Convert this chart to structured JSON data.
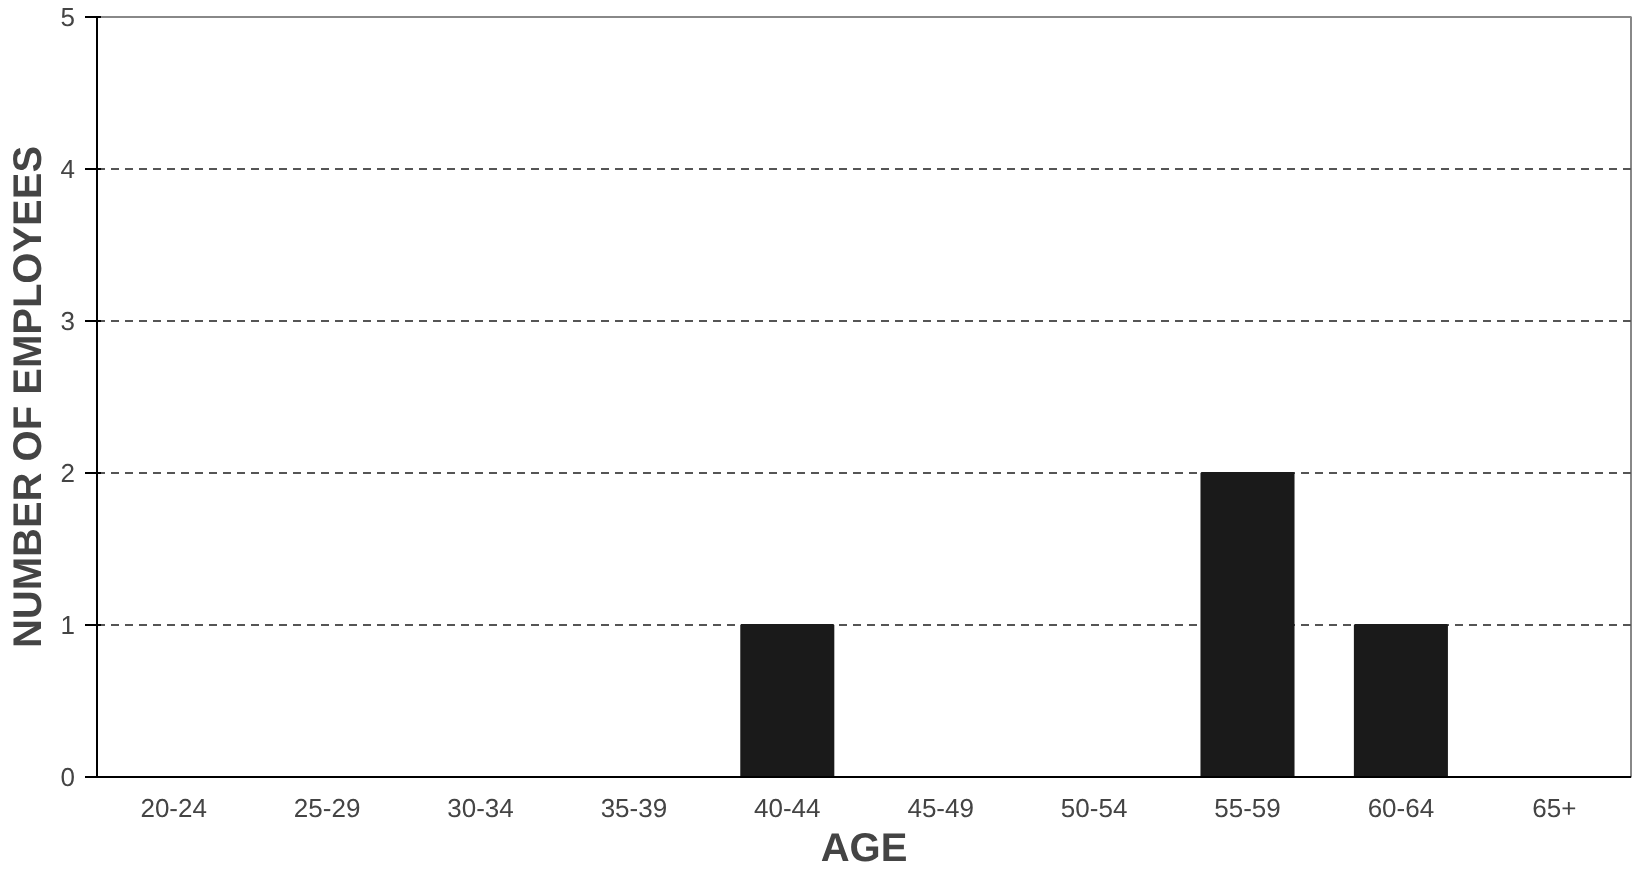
{
  "chart_data": {
    "type": "bar",
    "xlabel": "AGE",
    "ylabel": "NUMBER OF EMPLOYEES",
    "categories": [
      "20-24",
      "25-29",
      "30-34",
      "35-39",
      "40-44",
      "45-49",
      "50-54",
      "55-59",
      "60-64",
      "65+"
    ],
    "values": [
      0,
      0,
      0,
      0,
      1,
      0,
      0,
      2,
      1,
      0
    ],
    "color": "#1a1a1a",
    "ylim": [
      0,
      5
    ],
    "yticks": [
      0,
      1,
      2,
      3,
      4,
      5
    ],
    "grid": "y"
  }
}
